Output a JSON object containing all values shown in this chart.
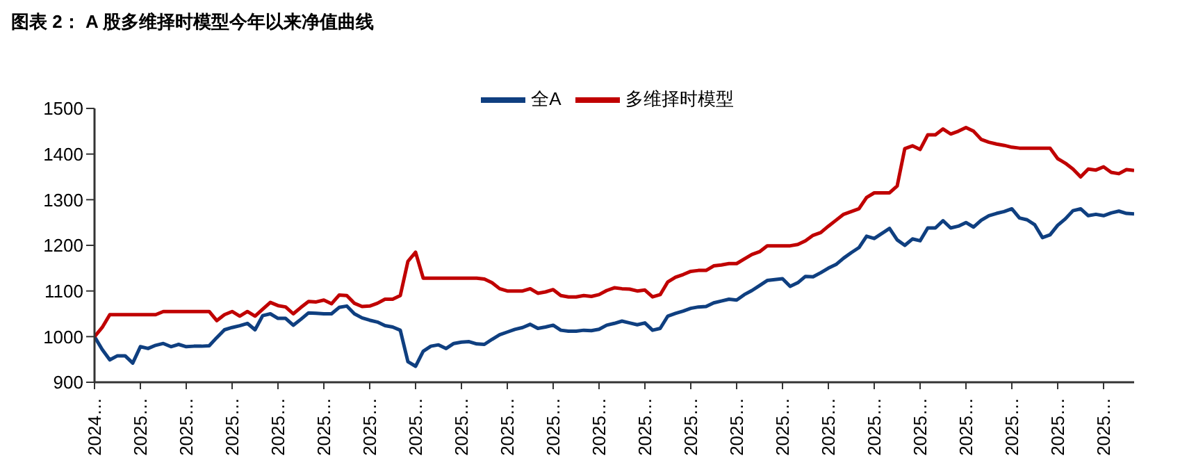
{
  "chart_data": {
    "type": "line",
    "title": "图表 2： A 股多维择时模型今年以来净值曲线",
    "categories": [
      "2024…",
      null,
      null,
      null,
      null,
      null,
      "2025…",
      null,
      null,
      null,
      null,
      null,
      "2025…",
      null,
      null,
      null,
      null,
      null,
      "2025…",
      null,
      null,
      null,
      null,
      null,
      "2025…",
      null,
      null,
      null,
      null,
      null,
      "2025…",
      null,
      null,
      null,
      null,
      null,
      "2025…",
      null,
      null,
      null,
      null,
      null,
      "2025…",
      null,
      null,
      null,
      null,
      null,
      "2025…",
      null,
      null,
      null,
      null,
      null,
      "2025…",
      null,
      null,
      null,
      null,
      null,
      "2025…",
      null,
      null,
      null,
      null,
      null,
      "2025…",
      null,
      null,
      null,
      null,
      null,
      "2025…",
      null,
      null,
      null,
      null,
      null,
      "2025…",
      null,
      null,
      null,
      null,
      null,
      "2025…",
      null,
      null,
      null,
      null,
      null,
      "2025…",
      null,
      null,
      null,
      null,
      null,
      "2025…",
      null,
      null,
      null,
      null,
      null,
      "2025…",
      null,
      null,
      null,
      null,
      null,
      "2025…",
      null,
      null,
      null,
      null,
      null,
      "2025…",
      null,
      null,
      null,
      null,
      null,
      "2025…",
      null,
      null,
      null,
      null,
      null,
      "2025…",
      null,
      null,
      null,
      null,
      null,
      "2025…",
      null,
      null,
      null,
      null
    ],
    "series": [
      {
        "name": "全A",
        "color": "#0f3f80",
        "values": [
          1000,
          972,
          949,
          958,
          958,
          942,
          978,
          974,
          981,
          985,
          978,
          983,
          978,
          979,
          979,
          980,
          998,
          1015,
          1020,
          1024,
          1029,
          1015,
          1046,
          1050,
          1040,
          1040,
          1025,
          1038,
          1052,
          1051,
          1050,
          1050,
          1064,
          1067,
          1050,
          1041,
          1036,
          1032,
          1024,
          1021,
          1014,
          945,
          935,
          968,
          979,
          982,
          974,
          985,
          988,
          989,
          984,
          983,
          994,
          1004,
          1010,
          1016,
          1020,
          1027,
          1018,
          1021,
          1025,
          1014,
          1012,
          1012,
          1014,
          1013,
          1016,
          1025,
          1029,
          1034,
          1030,
          1026,
          1030,
          1014,
          1018,
          1045,
          1051,
          1056,
          1062,
          1065,
          1066,
          1074,
          1078,
          1082,
          1080,
          1092,
          1101,
          1112,
          1123,
          1125,
          1127,
          1110,
          1118,
          1132,
          1131,
          1140,
          1150,
          1158,
          1172,
          1184,
          1195,
          1220,
          1215,
          1226,
          1237,
          1212,
          1200,
          1214,
          1210,
          1238,
          1238,
          1254,
          1238,
          1242,
          1250,
          1240,
          1255,
          1265,
          1270,
          1274,
          1280,
          1260,
          1256,
          1245,
          1217,
          1223,
          1244,
          1258,
          1276,
          1280,
          1265,
          1268,
          1265,
          1271,
          1275,
          1270,
          1269
        ]
      },
      {
        "name": "多维择时模型",
        "color": "#c00000",
        "values": [
          1000,
          1020,
          1048,
          1048,
          1048,
          1048,
          1048,
          1048,
          1048,
          1055,
          1055,
          1055,
          1055,
          1055,
          1055,
          1055,
          1035,
          1048,
          1055,
          1045,
          1055,
          1045,
          1060,
          1075,
          1068,
          1065,
          1050,
          1064,
          1077,
          1076,
          1080,
          1072,
          1091,
          1090,
          1073,
          1066,
          1067,
          1073,
          1082,
          1082,
          1090,
          1165,
          1185,
          1128,
          1128,
          1128,
          1128,
          1128,
          1128,
          1128,
          1128,
          1126,
          1118,
          1105,
          1100,
          1100,
          1100,
          1105,
          1095,
          1098,
          1103,
          1090,
          1087,
          1087,
          1090,
          1088,
          1092,
          1101,
          1107,
          1105,
          1104,
          1100,
          1102,
          1087,
          1092,
          1120,
          1130,
          1136,
          1143,
          1145,
          1145,
          1155,
          1157,
          1160,
          1160,
          1170,
          1180,
          1186,
          1199,
          1199,
          1199,
          1199,
          1202,
          1210,
          1222,
          1228,
          1242,
          1255,
          1268,
          1274,
          1280,
          1305,
          1315,
          1315,
          1315,
          1330,
          1412,
          1418,
          1410,
          1442,
          1442,
          1455,
          1444,
          1450,
          1458,
          1450,
          1432,
          1426,
          1422,
          1419,
          1415,
          1413,
          1413,
          1413,
          1413,
          1413,
          1390,
          1380,
          1367,
          1350,
          1367,
          1365,
          1372,
          1360,
          1357,
          1366,
          1364
        ]
      }
    ],
    "ylim": [
      900,
      1500
    ],
    "yticks": [
      900,
      1000,
      1100,
      1200,
      1300,
      1400,
      1500
    ],
    "legend": "top"
  }
}
